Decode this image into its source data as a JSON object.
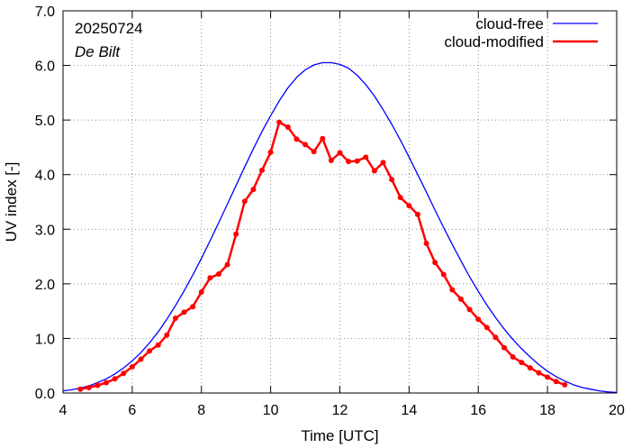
{
  "chart_data": {
    "type": "line",
    "title": "",
    "xlabel": "Time  [UTC]",
    "ylabel": "UV index  [-]",
    "xlim": [
      4,
      20
    ],
    "ylim": [
      0,
      7
    ],
    "x_ticks": [
      "4",
      "6",
      "8",
      "10",
      "12",
      "14",
      "16",
      "18",
      "20"
    ],
    "y_ticks": [
      "0.0",
      "1.0",
      "2.0",
      "3.0",
      "4.0",
      "5.0",
      "6.0",
      "7.0"
    ],
    "annotations": {
      "date": "20250724",
      "location": "De Bilt"
    },
    "legend_position": "top-right",
    "series": [
      {
        "name": "cloud-free",
        "color": "#0000ff",
        "marker": false,
        "x": [
          4.0,
          4.25,
          4.5,
          4.75,
          5.0,
          5.25,
          5.5,
          5.75,
          6.0,
          6.25,
          6.5,
          6.75,
          7.0,
          7.25,
          7.5,
          7.75,
          8.0,
          8.25,
          8.5,
          8.75,
          9.0,
          9.25,
          9.5,
          9.75,
          10.0,
          10.25,
          10.5,
          10.75,
          11.0,
          11.25,
          11.5,
          11.75,
          12.0,
          12.25,
          12.5,
          12.75,
          13.0,
          13.25,
          13.5,
          13.75,
          14.0,
          14.25,
          14.5,
          14.75,
          15.0,
          15.25,
          15.5,
          15.75,
          16.0,
          16.25,
          16.5,
          16.75,
          17.0,
          17.25,
          17.5,
          17.75,
          18.0,
          18.25,
          18.5,
          18.75,
          19.0,
          19.25,
          19.5,
          19.75,
          20.0
        ],
        "y": [
          0.04,
          0.06,
          0.09,
          0.13,
          0.19,
          0.26,
          0.35,
          0.46,
          0.59,
          0.74,
          0.92,
          1.12,
          1.35,
          1.6,
          1.87,
          2.16,
          2.47,
          2.79,
          3.12,
          3.46,
          3.8,
          4.14,
          4.47,
          4.79,
          5.08,
          5.35,
          5.59,
          5.78,
          5.92,
          6.01,
          6.05,
          6.05,
          6.02,
          5.95,
          5.82,
          5.65,
          5.44,
          5.19,
          4.92,
          4.63,
          4.32,
          4.0,
          3.68,
          3.35,
          3.03,
          2.72,
          2.42,
          2.13,
          1.86,
          1.61,
          1.38,
          1.17,
          0.98,
          0.81,
          0.66,
          0.52,
          0.4,
          0.3,
          0.22,
          0.15,
          0.1,
          0.07,
          0.04,
          0.02,
          0.01
        ]
      },
      {
        "name": "cloud-modified",
        "color": "#ff0000",
        "marker": true,
        "x": [
          4.5,
          4.75,
          5.0,
          5.25,
          5.5,
          5.75,
          6.0,
          6.25,
          6.5,
          6.75,
          7.0,
          7.25,
          7.5,
          7.75,
          8.0,
          8.25,
          8.5,
          8.75,
          9.0,
          9.25,
          9.5,
          9.75,
          10.0,
          10.25,
          10.5,
          10.75,
          11.0,
          11.25,
          11.5,
          11.75,
          12.0,
          12.25,
          12.5,
          12.75,
          13.0,
          13.25,
          13.5,
          13.75,
          14.0,
          14.25,
          14.5,
          14.75,
          15.0,
          15.25,
          15.5,
          15.75,
          16.0,
          16.25,
          16.5,
          16.75,
          17.0,
          17.25,
          17.5,
          17.75,
          18.0,
          18.25,
          18.5
        ],
        "y": [
          0.07,
          0.1,
          0.14,
          0.19,
          0.26,
          0.36,
          0.48,
          0.62,
          0.77,
          0.88,
          1.06,
          1.37,
          1.48,
          1.58,
          1.85,
          2.11,
          2.18,
          2.35,
          2.91,
          3.51,
          3.73,
          4.08,
          4.41,
          4.96,
          4.87,
          4.65,
          4.55,
          4.42,
          4.66,
          4.26,
          4.4,
          4.24,
          4.25,
          4.32,
          4.07,
          4.22,
          3.91,
          3.58,
          3.43,
          3.27,
          2.74,
          2.39,
          2.17,
          1.89,
          1.72,
          1.53,
          1.35,
          1.2,
          1.02,
          0.83,
          0.66,
          0.56,
          0.46,
          0.37,
          0.29,
          0.21,
          0.15
        ]
      }
    ]
  }
}
